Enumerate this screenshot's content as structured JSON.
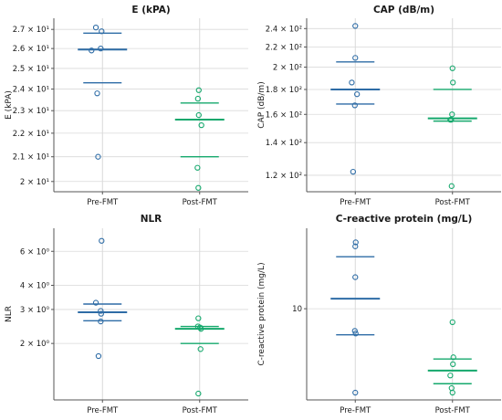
{
  "colors": {
    "pre": "#2e6ca6",
    "post": "#14a86c",
    "axis": "#555555",
    "grid": "#d9d9d9"
  },
  "chart_data": [
    {
      "type": "scatter",
      "title": "E (kPA)",
      "ylabel": "E (kPA)",
      "scale": "log",
      "categories": [
        "Pre-FMT",
        "Post-FMT"
      ],
      "ylim": [
        19.6,
        27.6
      ],
      "ticks": [
        20,
        21,
        22,
        23,
        24,
        25,
        26,
        27
      ],
      "tick_labels": [
        "2 × 10¹",
        "2.1 × 10¹",
        "2.2 × 10¹",
        "2.3 × 10¹",
        "2.4 × 10¹",
        "2.5 × 10¹",
        "2.6 × 10¹",
        "2.7 × 10¹"
      ],
      "series": [
        {
          "category": "Pre-FMT",
          "values": [
            27.1,
            26.9,
            25.9,
            26.0,
            23.8,
            21.0
          ],
          "jitter": [
            -0.15,
            -0.02,
            -0.25,
            -0.04,
            -0.12,
            -0.1
          ],
          "mean": 25.95,
          "ci": [
            24.3,
            26.8
          ]
        },
        {
          "category": "Post-FMT",
          "values": [
            23.95,
            23.55,
            22.8,
            22.35,
            20.55,
            19.75
          ],
          "jitter": [
            -0.02,
            -0.04,
            -0.02,
            0.04,
            -0.05,
            -0.03
          ],
          "mean": 22.6,
          "ci": [
            21.0,
            23.35
          ]
        }
      ]
    },
    {
      "type": "scatter",
      "title": "CAP (dB/m)",
      "ylabel": "CAP (dB/m)",
      "scale": "log",
      "categories": [
        "Pre-FMT",
        "Post-FMT"
      ],
      "ylim": [
        111,
        252
      ],
      "ticks": [
        120,
        140,
        160,
        180,
        200,
        220,
        240
      ],
      "tick_labels": [
        "1.2 × 10²",
        "1.4 × 10²",
        "1.6 × 10²",
        "1.8 × 10²",
        "2 × 10²",
        "2.2 × 10²",
        "2.4 × 10²"
      ],
      "series": [
        {
          "category": "Pre-FMT",
          "values": [
            243,
            209,
            186,
            176,
            167,
            122
          ],
          "jitter": [
            0,
            0,
            -0.08,
            0.04,
            -0.01,
            -0.05
          ],
          "mean": 180,
          "ci": [
            168,
            205
          ]
        },
        {
          "category": "Post-FMT",
          "values": [
            199,
            186,
            160,
            156,
            156,
            114
          ],
          "jitter": [
            0,
            0.01,
            -0.01,
            -0.05,
            -0.03,
            -0.02
          ],
          "mean": 157,
          "ci": [
            155,
            180
          ]
        }
      ]
    },
    {
      "type": "scatter",
      "title": "NLR",
      "ylabel": "NLR",
      "scale": "log",
      "categories": [
        "Pre-FMT",
        "Post-FMT"
      ],
      "ylim": [
        1.02,
        7.9
      ],
      "ticks": [
        2,
        3,
        4,
        6
      ],
      "tick_labels": [
        "2 × 10⁰",
        "3 × 10⁰",
        "4 × 10⁰",
        "6 × 10⁰"
      ],
      "series": [
        {
          "category": "Pre-FMT",
          "values": [
            6.8,
            3.25,
            2.95,
            2.85,
            2.6,
            1.72
          ],
          "jitter": [
            -0.02,
            -0.15,
            -0.04,
            -0.03,
            -0.04,
            -0.09
          ],
          "mean": 2.9,
          "ci": [
            2.62,
            3.2
          ]
        },
        {
          "category": "Post-FMT",
          "values": [
            2.7,
            2.45,
            2.42,
            2.38,
            1.87,
            1.1
          ],
          "jitter": [
            -0.03,
            -0.04,
            0.01,
            0.03,
            0.02,
            -0.03
          ],
          "mean": 2.38,
          "ci": [
            2.0,
            2.45
          ]
        }
      ]
    },
    {
      "type": "scatter",
      "title": "C-reactive protein (mg/L)",
      "ylabel": "C-reactive protein (mg/L)",
      "scale": "log",
      "categories": [
        "Pre-FMT",
        "Post-FMT"
      ],
      "ylim": [
        4.2,
        21.5
      ],
      "ticks": [
        10
      ],
      "tick_labels": [
        "10"
      ],
      "series": [
        {
          "category": "Pre-FMT",
          "values": [
            18.8,
            18.1,
            13.5,
            8.1,
            7.9,
            4.5
          ],
          "jitter": [
            0.01,
            0,
            0,
            -0.01,
            0.01,
            0
          ],
          "mean": 11.0,
          "ci": [
            7.8,
            16.4
          ]
        },
        {
          "category": "Post-FMT",
          "values": [
            8.8,
            6.3,
            5.9,
            5.3,
            4.7,
            4.5
          ],
          "jitter": [
            0,
            0.02,
            0.01,
            -0.05,
            -0.02,
            0
          ],
          "mean": 5.55,
          "ci": [
            4.9,
            6.2
          ]
        }
      ]
    }
  ]
}
